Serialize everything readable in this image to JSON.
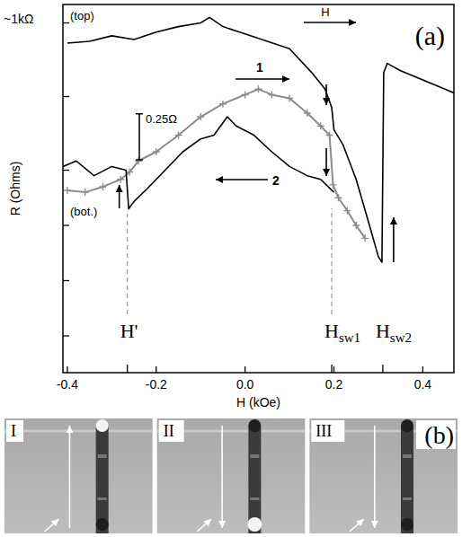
{
  "chart_data": {
    "type": "line",
    "panel_label": "(a)",
    "x_label": "H (kOe)",
    "y_label": "R (Ohms)",
    "xlim": [
      -0.41,
      0.47
    ],
    "xticks": [
      -0.4,
      -0.2,
      {
        "value": 0,
        "label": "0.0"
      },
      0.2,
      0.4
    ],
    "ylim": [
      0,
      2
    ],
    "yticks": [
      0.2,
      0.5,
      0.8,
      1.1,
      1.5,
      1.9
    ],
    "tick_labels": "x",
    "series": [
      {
        "name": "(top)",
        "color": "#000000",
        "marker": "none",
        "line_style": "solid",
        "x": [
          -0.4,
          -0.35,
          -0.3,
          -0.25,
          -0.2,
          -0.15,
          -0.1,
          -0.08,
          -0.05,
          0,
          0.05,
          0.1,
          0.15,
          0.18,
          0.195,
          0.2,
          0.22,
          0.25,
          0.28,
          0.3,
          0.308,
          0.312,
          0.32,
          0.35,
          0.4,
          0.45,
          0.47
        ],
        "values": [
          1.79,
          1.8,
          1.83,
          1.81,
          1.85,
          1.88,
          1.9,
          1.93,
          1.88,
          1.84,
          1.8,
          1.76,
          1.63,
          1.54,
          1.44,
          1.32,
          1.24,
          1.05,
          0.8,
          0.63,
          0.6,
          1.63,
          1.68,
          1.64,
          1.59,
          1.54,
          1.52
        ]
      },
      {
        "name": "1",
        "color": "#8c8c8c",
        "marker": "plus",
        "line_style": "solid",
        "x": [
          -0.4,
          -0.36,
          -0.32,
          -0.28,
          -0.26,
          -0.24,
          -0.2,
          -0.15,
          -0.1,
          -0.05,
          0,
          0.03,
          0.06,
          0.1,
          0.14,
          0.17,
          0.19,
          0.198,
          0.21,
          0.23,
          0.25,
          0.27
        ],
        "values": [
          0.99,
          0.98,
          1.01,
          1.05,
          1.09,
          1.15,
          1.2,
          1.29,
          1.39,
          1.46,
          1.51,
          1.54,
          1.51,
          1.49,
          1.41,
          1.34,
          1.29,
          1.02,
          0.95,
          0.88,
          0.8,
          0.73
        ]
      },
      {
        "name": "2",
        "color": "#000000",
        "marker": "none",
        "line_style": "solid",
        "x": [
          0.2,
          0.17,
          0.14,
          0.1,
          0.06,
          0.02,
          -0.02,
          -0.04,
          -0.07,
          -0.1,
          -0.14,
          -0.18,
          -0.22,
          -0.25,
          -0.262,
          -0.268,
          -0.3,
          -0.34,
          -0.38,
          -0.41
        ],
        "values": [
          0.98,
          1.05,
          1.07,
          1.12,
          1.2,
          1.29,
          1.34,
          1.39,
          1.29,
          1.27,
          1.2,
          1.1,
          1.0,
          0.93,
          0.89,
          1.1,
          1.12,
          1.07,
          1.15,
          1.12
        ]
      }
    ],
    "annotations": {
      "top_scale": "~1kΩ",
      "bottom": "(bot.)",
      "field": "H"
    },
    "scale_bar": {
      "value": 0.25,
      "label": "0.25Ω"
    },
    "field_markers": [
      {
        "label": "H'",
        "x": -0.265
      },
      {
        "label": "H",
        "sub": "sw1",
        "x": 0.195
      },
      {
        "label": "H",
        "sub": "sw2",
        "x": 0.31
      }
    ]
  },
  "figure_b": {
    "panel_label": "(b)",
    "panels": [
      "I",
      "II",
      "III"
    ]
  }
}
